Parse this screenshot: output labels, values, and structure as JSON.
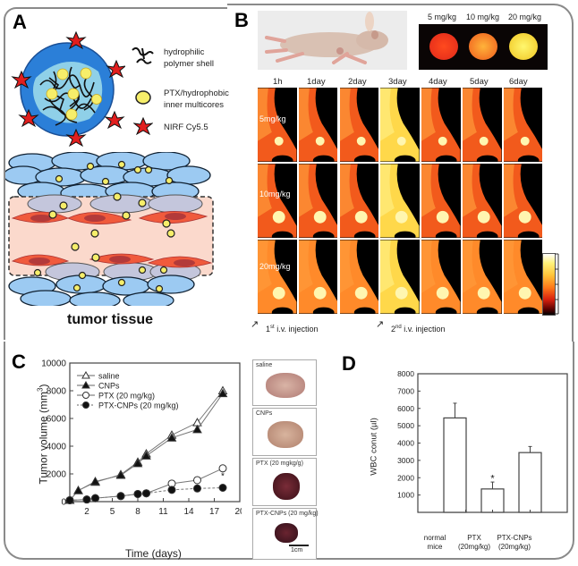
{
  "panels": {
    "A": {
      "letter": "A",
      "legend": [
        {
          "icon": "polymer-chain-icon",
          "label_line1": "hydrophilic",
          "label_line2": "polymer shell"
        },
        {
          "icon": "yellow-core-icon",
          "label_line1": "PTX/hydrophobic",
          "label_line2": "inner multicores"
        },
        {
          "icon": "red-star-icon",
          "label_line1": "NIRF Cy5.5",
          "label_line2": ""
        }
      ],
      "caption": "tumor tissue",
      "colors": {
        "shell": "#2b7fd8",
        "core_fill": "#8fd0e8",
        "particle": "#f6ee6a",
        "dye": "#e21e1e",
        "cells": "#9ccaf2",
        "vessel": "#fbd9cc",
        "endothelium": "#f05a3c"
      }
    },
    "B": {
      "letter": "B",
      "phantom_labels": [
        "5 mg/kg",
        "10 mg/kg",
        "20 mg/kg"
      ],
      "timepoints": [
        "1h",
        "1day",
        "2day",
        "3day",
        "4day",
        "5day",
        "6day"
      ],
      "doses": [
        "5mg/kg",
        "10mg/kg",
        "20mg/kg"
      ],
      "colorbar_ticks": [
        "",
        "",
        "",
        "",
        ""
      ],
      "annotations": [
        {
          "base": "1",
          "sup": "st",
          "text": " i.v. injection"
        },
        {
          "base": "2",
          "sup": "nd",
          "text": " i.v. injection"
        }
      ]
    },
    "C": {
      "letter": "C",
      "tumor_photos": [
        {
          "label": "saline",
          "color": "#c9a093"
        },
        {
          "label": "CNPs",
          "color": "#c8a28f"
        },
        {
          "label": "PTX (20 mgkg/g)",
          "color": "#5a1c26"
        },
        {
          "label": "PTX-CNPs (20 mg/kg)",
          "color": "#4a1620"
        }
      ],
      "scale_bar": "1cm"
    },
    "D": {
      "letter": "D"
    }
  },
  "chart_data": [
    {
      "type": "line",
      "title": "",
      "xlabel": "Time (days)",
      "ylabel": "Tumor volume (mm³)",
      "xlim": [
        0,
        20
      ],
      "ylim": [
        0,
        10000
      ],
      "xticks": [
        2,
        5,
        8,
        11,
        14,
        17,
        20
      ],
      "yticks": [
        0,
        2000,
        4000,
        6000,
        8000,
        10000
      ],
      "legend_position": "upper-left",
      "series": [
        {
          "name": "saline",
          "marker": "open-triangle",
          "line": "solid",
          "x": [
            0,
            1,
            3,
            6,
            8,
            9,
            12,
            15,
            18
          ],
          "y": [
            100,
            800,
            1400,
            1950,
            2850,
            3450,
            4800,
            5700,
            8000
          ]
        },
        {
          "name": "CNPs",
          "marker": "filled-triangle",
          "line": "solid",
          "x": [
            0,
            1,
            3,
            6,
            8,
            9,
            12,
            15,
            18
          ],
          "y": [
            100,
            800,
            1450,
            1900,
            2750,
            3300,
            4600,
            5200,
            7800
          ]
        },
        {
          "name": "PTX (20 mg/kg)",
          "marker": "open-circle",
          "line": "solid",
          "x": [
            0,
            2,
            3,
            6,
            8,
            9,
            12,
            15,
            18
          ],
          "y": [
            100,
            150,
            250,
            400,
            550,
            600,
            1300,
            1550,
            2400
          ]
        },
        {
          "name": "PTX-CNPs (20 mg/kg)",
          "marker": "filled-circle",
          "line": "dashed",
          "x": [
            0,
            2,
            3,
            6,
            8,
            9,
            12,
            15,
            18
          ],
          "y": [
            100,
            150,
            250,
            400,
            550,
            600,
            850,
            950,
            1000
          ]
        }
      ],
      "annotations": [
        "*"
      ]
    },
    {
      "type": "bar",
      "title": "",
      "xlabel": "",
      "ylabel": "WBC conut (µl)",
      "ylim": [
        0,
        8000
      ],
      "yticks": [
        1000,
        2000,
        3000,
        4000,
        5000,
        6000,
        7000,
        8000
      ],
      "categories": [
        "normal mice",
        "PTX (20mg/kg)",
        "PTX-CNPs (20mg/kg)"
      ],
      "values": [
        5450,
        1350,
        3450
      ],
      "errors": [
        850,
        400,
        350
      ],
      "annotations": [
        {
          "category": "PTX (20mg/kg)",
          "text": "*"
        }
      ]
    }
  ],
  "labels": {
    "c_xlabel": "Time (days)",
    "c_ylabel_main": "Tumor volume (mm",
    "c_ylabel_sup": "3",
    "c_ylabel_end": ")",
    "d_ylabel": "WBC conut (µl)",
    "d_cat1a": "normal",
    "d_cat1b": "mice",
    "d_cat2a": "PTX",
    "d_cat2b": "(20mg/kg)",
    "d_cat3a": "PTX-CNPs",
    "d_cat3b": "(20mg/kg)",
    "star": "*"
  }
}
